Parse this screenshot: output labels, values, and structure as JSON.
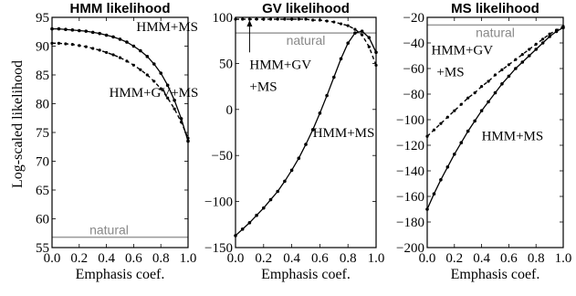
{
  "figure": {
    "ylabel": "Log-scaled likelihood",
    "xlabel": "Emphasis coef."
  },
  "chart_data": [
    {
      "type": "line",
      "title": "HMM likelihood",
      "xlabel": "Emphasis coef.",
      "ylabel": "Log-scaled likelihood",
      "xlim": [
        0,
        1
      ],
      "ylim": [
        55,
        95
      ],
      "xticks": [
        "0.0",
        "0.2",
        "0.4",
        "0.6",
        "0.8",
        "1.0"
      ],
      "yticks": [
        "55",
        "60",
        "65",
        "70",
        "75",
        "80",
        "85",
        "90",
        "95"
      ],
      "x": [
        0.0,
        0.05,
        0.1,
        0.15,
        0.2,
        0.25,
        0.3,
        0.35,
        0.4,
        0.45,
        0.5,
        0.55,
        0.6,
        0.65,
        0.7,
        0.75,
        0.8,
        0.85,
        0.9,
        0.95,
        1.0
      ],
      "series": [
        {
          "label": "HMM+MS",
          "style": "solid",
          "values": [
            93.0,
            93.0,
            92.9,
            92.8,
            92.7,
            92.6,
            92.4,
            92.2,
            91.9,
            91.6,
            91.2,
            90.7,
            90.0,
            89.2,
            88.2,
            86.9,
            85.3,
            83.2,
            80.6,
            77.4,
            73.5
          ]
        },
        {
          "label": "HMM+GV+MS",
          "style": "dashed",
          "values": [
            90.5,
            90.5,
            90.4,
            90.3,
            90.1,
            89.9,
            89.6,
            89.3,
            88.9,
            88.5,
            88.0,
            87.4,
            86.7,
            85.9,
            85.0,
            83.9,
            82.6,
            81.0,
            79.1,
            76.8,
            74.0
          ]
        }
      ],
      "reference_line": {
        "label": "natural",
        "value": 56.8
      },
      "annotations": [
        {
          "text": "HMM+MS",
          "x": 0.62,
          "y": 92.6
        },
        {
          "text": "HMM+GV+MS",
          "x": 0.42,
          "y": 81.2
        }
      ]
    },
    {
      "type": "line",
      "title": "GV likelihood",
      "xlabel": "Emphasis coef.",
      "xlim": [
        0,
        1
      ],
      "ylim": [
        -150,
        100
      ],
      "xticks": [
        "0.0",
        "0.2",
        "0.4",
        "0.6",
        "0.8",
        "1.0"
      ],
      "yticks": [
        "-150",
        "-100",
        "-50",
        "0",
        "50",
        "100"
      ],
      "x": [
        0.0,
        0.05,
        0.1,
        0.15,
        0.2,
        0.25,
        0.3,
        0.35,
        0.4,
        0.45,
        0.5,
        0.55,
        0.6,
        0.65,
        0.7,
        0.75,
        0.8,
        0.85,
        0.9,
        0.95,
        1.0
      ],
      "series": [
        {
          "label": "HMM+MS",
          "style": "solid",
          "values": [
            -137,
            -130,
            -123,
            -115,
            -107,
            -98,
            -89,
            -78,
            -66,
            -53,
            -38,
            -22,
            -4,
            15,
            35,
            55,
            72,
            83,
            85,
            78,
            62
          ]
        },
        {
          "label": "HMM+GV+MS",
          "style": "dashed",
          "values": [
            98,
            98,
            98,
            98,
            98,
            98,
            98,
            98,
            98,
            98,
            98,
            97,
            97,
            96,
            95,
            93,
            91,
            87,
            81,
            68,
            48
          ]
        }
      ],
      "reference_line": {
        "label": "natural",
        "value": 83
      },
      "annotations": [
        {
          "text": "HMM+GV",
          "x": 0.1,
          "y": 44
        },
        {
          "text": "+MS",
          "x": 0.1,
          "y": 20
        },
        {
          "text": "HMM+MS",
          "x": 0.55,
          "y": -30
        }
      ],
      "arrow": {
        "x": 0.1,
        "from_y": 62,
        "to_y": 97
      }
    },
    {
      "type": "line",
      "title": "MS likelihood",
      "xlabel": "Emphasis coef.",
      "xlim": [
        0,
        1
      ],
      "ylim": [
        -200,
        -20
      ],
      "xticks": [
        "0.0",
        "0.2",
        "0.4",
        "0.6",
        "0.8",
        "1.0"
      ],
      "yticks": [
        "-200",
        "-180",
        "-160",
        "-140",
        "-120",
        "-100",
        "-80",
        "-60",
        "-40",
        "-20"
      ],
      "x": [
        0.0,
        0.05,
        0.1,
        0.15,
        0.2,
        0.25,
        0.3,
        0.35,
        0.4,
        0.45,
        0.5,
        0.55,
        0.6,
        0.65,
        0.7,
        0.75,
        0.8,
        0.85,
        0.9,
        0.95,
        1.0
      ],
      "series": [
        {
          "label": "HMM+MS",
          "style": "solid",
          "values": [
            -170,
            -158,
            -147,
            -137,
            -127,
            -118,
            -109,
            -101,
            -93,
            -86,
            -79,
            -72,
            -66,
            -60,
            -55,
            -50,
            -45,
            -40,
            -35,
            -31,
            -28
          ]
        },
        {
          "label": "HMM+GV+MS",
          "style": "dashed",
          "values": [
            -113,
            -108,
            -103,
            -98,
            -93,
            -88,
            -83,
            -79,
            -74,
            -70,
            -65,
            -61,
            -57,
            -53,
            -49,
            -45,
            -41,
            -37,
            -33,
            -30,
            -27
          ]
        }
      ],
      "reference_line": {
        "label": "natural",
        "value": -26
      },
      "annotations": [
        {
          "text": "HMM+GV",
          "x": 0.03,
          "y": -49
        },
        {
          "text": "+MS",
          "x": 0.07,
          "y": -66
        },
        {
          "text": "HMM+MS",
          "x": 0.4,
          "y": -116
        }
      ]
    }
  ]
}
